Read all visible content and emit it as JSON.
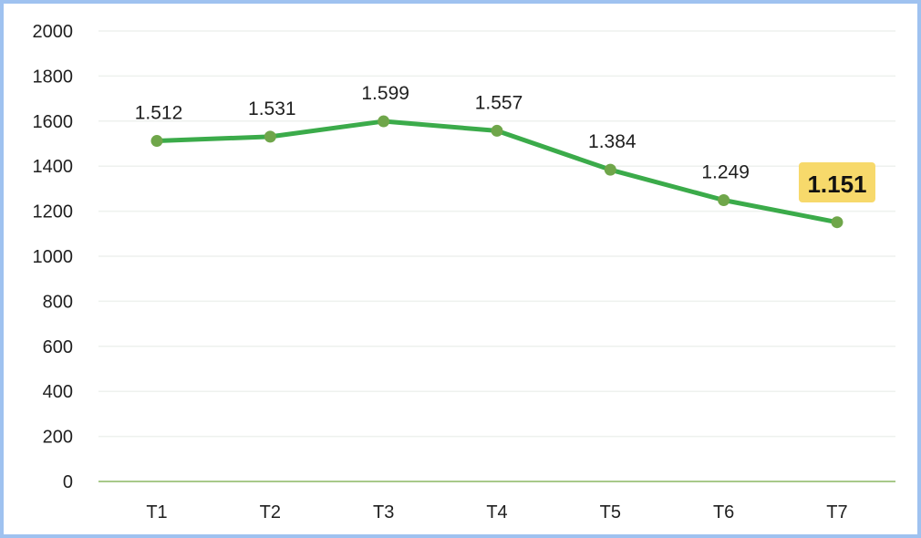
{
  "chart_data": {
    "type": "line",
    "title": "",
    "xlabel": "",
    "ylabel": "",
    "categories": [
      "T1",
      "T2",
      "T3",
      "T4",
      "T5",
      "T6",
      "T7"
    ],
    "series": [
      {
        "values": [
          1512,
          1531,
          1599,
          1557,
          1384,
          1249,
          1151
        ],
        "data_labels": [
          "1.512",
          "1.531",
          "1.599",
          "1.557",
          "1.384",
          "1.249",
          "1.151"
        ],
        "color": "#3bab4a",
        "marker_color": "#6fa64a"
      }
    ],
    "highlight_index": 6,
    "highlight_color": "#f7d96b",
    "ylim": [
      0,
      2000
    ],
    "yticks": [
      "0",
      "200",
      "400",
      "600",
      "800",
      "1000",
      "1200",
      "1400",
      "1600",
      "1800",
      "2000"
    ],
    "grid": true,
    "grid_color": "#eef1ee",
    "baseline_color": "#a8c98a",
    "legend": "none"
  }
}
